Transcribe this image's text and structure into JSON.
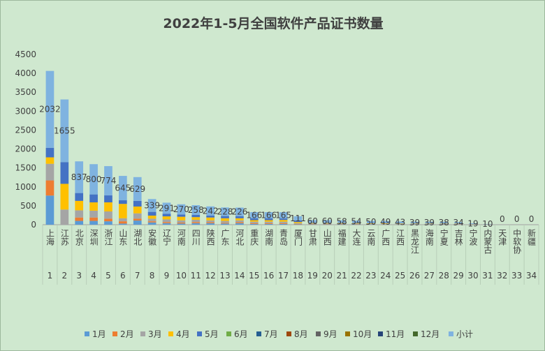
{
  "chart_data": {
    "type": "bar",
    "title": "2022年1-5月全国软件产品证书数量",
    "xlabel": "",
    "ylabel": "",
    "ylim": [
      0,
      4500
    ],
    "yticks": [
      0,
      500,
      1000,
      1500,
      2000,
      2500,
      3000,
      3500,
      4000,
      4500
    ],
    "grid": false,
    "legend_position": "bottom",
    "categories": [
      "上海",
      "江苏",
      "北京",
      "深圳",
      "浙江",
      "山东",
      "湖北",
      "安徽",
      "辽宁",
      "河南",
      "四川",
      "陕西",
      "广东",
      "河北",
      "重庆",
      "湖南",
      "青岛",
      "厦门",
      "甘肃",
      "山西",
      "福建",
      "大连",
      "云南",
      "广西",
      "江西",
      "黑龙江",
      "海南",
      "宁夏",
      "吉林",
      "宁波",
      "内蒙古",
      "天津",
      "中软协",
      "新疆"
    ],
    "ranks": [
      "1",
      "2",
      "3",
      "4",
      "5",
      "6",
      "7",
      "8",
      "9",
      "10",
      "11",
      "12",
      "13",
      "14",
      "15",
      "16",
      "17",
      "18",
      "19",
      "20",
      "21",
      "22",
      "23",
      "24",
      "25",
      "26",
      "27",
      "28",
      "29",
      "30",
      "31",
      "32",
      "33",
      "34"
    ],
    "totals": [
      2032,
      1655,
      837,
      800,
      774,
      645,
      629,
      339,
      291,
      270,
      258,
      242,
      228,
      226,
      166,
      166,
      165,
      111,
      60,
      60,
      58,
      54,
      50,
      49,
      43,
      39,
      39,
      38,
      34,
      19,
      10,
      0,
      0,
      0
    ],
    "total_labels": [
      "2032",
      "1655",
      "837",
      "800",
      "774",
      "645",
      "629",
      "339",
      "291",
      "270",
      "258",
      "242",
      "228",
      "226",
      "166",
      "166",
      "165",
      "111",
      "60",
      "60",
      "58",
      "54",
      "50",
      "49",
      "43",
      "39",
      "39",
      "38",
      "34",
      "19",
      "10",
      "0",
      "0",
      "0"
    ],
    "series": [
      {
        "name": "1月",
        "color": "#5b9bd5",
        "values": [
          770,
          0,
          100,
          100,
          90,
          30,
          110,
          60,
          40,
          30,
          40,
          40,
          30,
          40,
          20,
          20,
          20,
          10,
          10,
          10,
          10,
          10,
          10,
          10,
          8,
          8,
          8,
          8,
          6,
          4,
          2,
          0,
          0,
          0
        ]
      },
      {
        "name": "2月",
        "color": "#ed7d31",
        "values": [
          400,
          0,
          90,
          90,
          70,
          60,
          50,
          30,
          30,
          25,
          30,
          25,
          20,
          25,
          20,
          20,
          20,
          10,
          8,
          8,
          8,
          8,
          6,
          6,
          6,
          5,
          5,
          5,
          5,
          3,
          2,
          0,
          0,
          0
        ]
      },
      {
        "name": "3月",
        "color": "#a5a5a5",
        "values": [
          440,
          400,
          190,
          180,
          190,
          80,
          140,
          70,
          70,
          60,
          60,
          50,
          50,
          50,
          40,
          40,
          40,
          20,
          12,
          12,
          12,
          12,
          10,
          10,
          10,
          8,
          8,
          8,
          8,
          4,
          2,
          0,
          0,
          0
        ]
      },
      {
        "name": "4月",
        "color": "#ffc000",
        "values": [
          170,
          680,
          250,
          220,
          240,
          380,
          180,
          80,
          80,
          95,
          70,
          75,
          70,
          55,
          40,
          40,
          45,
          30,
          15,
          15,
          14,
          12,
          12,
          12,
          10,
          9,
          9,
          9,
          8,
          4,
          2,
          0,
          0,
          0
        ]
      },
      {
        "name": "5月",
        "color": "#4472c4",
        "values": [
          252,
          575,
          207,
          210,
          184,
          95,
          149,
          99,
          71,
          60,
          58,
          52,
          58,
          56,
          46,
          46,
          40,
          41,
          15,
          15,
          14,
          12,
          12,
          11,
          9,
          9,
          9,
          8,
          7,
          4,
          2,
          0,
          0,
          0
        ]
      },
      {
        "name": "6月",
        "color": "#70ad47",
        "values": [
          0,
          0,
          0,
          0,
          0,
          0,
          0,
          0,
          0,
          0,
          0,
          0,
          0,
          0,
          0,
          0,
          0,
          0,
          0,
          0,
          0,
          0,
          0,
          0,
          0,
          0,
          0,
          0,
          0,
          0,
          0,
          0,
          0,
          0
        ]
      },
      {
        "name": "7月",
        "color": "#255e91",
        "values": [
          0,
          0,
          0,
          0,
          0,
          0,
          0,
          0,
          0,
          0,
          0,
          0,
          0,
          0,
          0,
          0,
          0,
          0,
          0,
          0,
          0,
          0,
          0,
          0,
          0,
          0,
          0,
          0,
          0,
          0,
          0,
          0,
          0,
          0
        ]
      },
      {
        "name": "8月",
        "color": "#9e480e",
        "values": [
          0,
          0,
          0,
          0,
          0,
          0,
          0,
          0,
          0,
          0,
          0,
          0,
          0,
          0,
          0,
          0,
          0,
          0,
          0,
          0,
          0,
          0,
          0,
          0,
          0,
          0,
          0,
          0,
          0,
          0,
          0,
          0,
          0,
          0
        ]
      },
      {
        "name": "9月",
        "color": "#636363",
        "values": [
          0,
          0,
          0,
          0,
          0,
          0,
          0,
          0,
          0,
          0,
          0,
          0,
          0,
          0,
          0,
          0,
          0,
          0,
          0,
          0,
          0,
          0,
          0,
          0,
          0,
          0,
          0,
          0,
          0,
          0,
          0,
          0,
          0,
          0
        ]
      },
      {
        "name": "10月",
        "color": "#997300",
        "values": [
          0,
          0,
          0,
          0,
          0,
          0,
          0,
          0,
          0,
          0,
          0,
          0,
          0,
          0,
          0,
          0,
          0,
          0,
          0,
          0,
          0,
          0,
          0,
          0,
          0,
          0,
          0,
          0,
          0,
          0,
          0,
          0,
          0,
          0
        ]
      },
      {
        "name": "11月",
        "color": "#264478",
        "values": [
          0,
          0,
          0,
          0,
          0,
          0,
          0,
          0,
          0,
          0,
          0,
          0,
          0,
          0,
          0,
          0,
          0,
          0,
          0,
          0,
          0,
          0,
          0,
          0,
          0,
          0,
          0,
          0,
          0,
          0,
          0,
          0,
          0,
          0
        ]
      },
      {
        "name": "12月",
        "color": "#43682b",
        "values": [
          0,
          0,
          0,
          0,
          0,
          0,
          0,
          0,
          0,
          0,
          0,
          0,
          0,
          0,
          0,
          0,
          0,
          0,
          0,
          0,
          0,
          0,
          0,
          0,
          0,
          0,
          0,
          0,
          0,
          0,
          0,
          0,
          0,
          0
        ]
      },
      {
        "name": "小计",
        "color": "#7fb3e0",
        "values": [
          2032,
          1655,
          837,
          800,
          774,
          645,
          629,
          339,
          291,
          270,
          258,
          242,
          228,
          226,
          166,
          166,
          165,
          111,
          60,
          60,
          58,
          54,
          50,
          49,
          43,
          39,
          39,
          38,
          34,
          19,
          10,
          0,
          0,
          0
        ]
      }
    ]
  }
}
